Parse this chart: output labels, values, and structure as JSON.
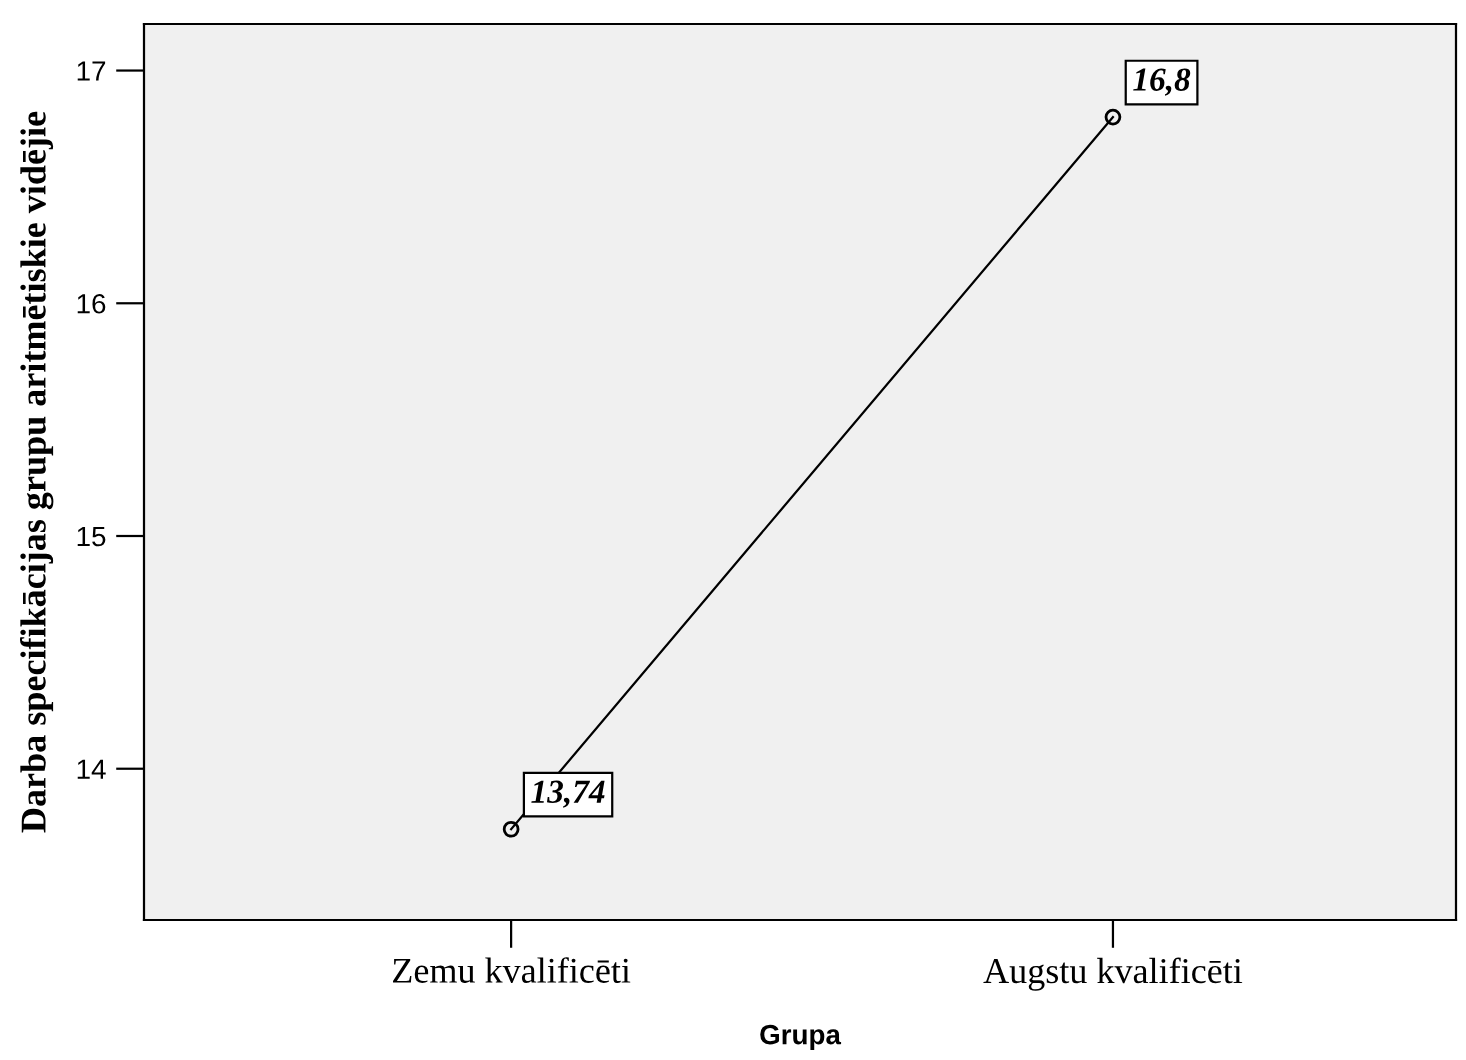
{
  "chart_data": {
    "type": "line",
    "xlabel": "Grupa",
    "ylabel": "Darba specifikācijas grupu aritmētiskie vidējie",
    "categories": [
      "Zemu kvalificēti",
      "Augstu kvalificēti"
    ],
    "series": [
      {
        "color": "#000000",
        "values": [
          13.74,
          16.8
        ],
        "value_labels": [
          "13,74",
          "16,8"
        ]
      }
    ],
    "ylim": [
      13.35,
      17.2
    ],
    "yticks": [
      14,
      15,
      16,
      17
    ],
    "marker": "circle",
    "line_style": "solid",
    "grid": false,
    "legend": false
  }
}
